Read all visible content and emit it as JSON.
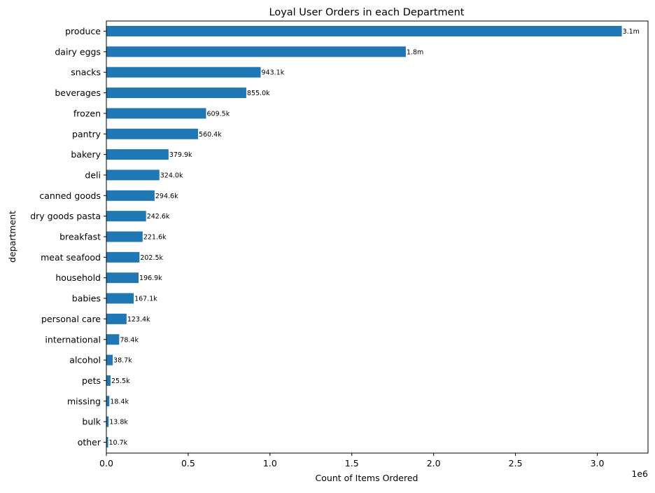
{
  "chart_data": {
    "type": "bar",
    "orientation": "horizontal",
    "title": "Loyal User Orders in each Department",
    "xlabel": "Count of Items Ordered",
    "ylabel": "department",
    "x_offset_label": "1e6",
    "xlim": [
      0,
      3.31
    ],
    "xticks": [
      0.0,
      0.5,
      1.0,
      1.5,
      2.0,
      2.5,
      3.0
    ],
    "xtick_labels": [
      "0.0",
      "0.5",
      "1.0",
      "1.5",
      "2.0",
      "2.5",
      "3.0"
    ],
    "grid": false,
    "legend": "none",
    "bar_color": "#1f77b4",
    "categories": [
      "produce",
      "dairy eggs",
      "snacks",
      "beverages",
      "frozen",
      "pantry",
      "bakery",
      "deli",
      "canned goods",
      "dry goods pasta",
      "breakfast",
      "meat seafood",
      "household",
      "babies",
      "personal care",
      "international",
      "alcohol",
      "pets",
      "missing",
      "bulk",
      "other"
    ],
    "values": [
      3150000,
      1830000,
      943100,
      855000,
      609500,
      560400,
      379900,
      324000,
      294600,
      242600,
      221600,
      202500,
      196900,
      167100,
      123400,
      78400,
      38700,
      25500,
      18400,
      13800,
      10700
    ],
    "value_labels": [
      "3.1m",
      "1.8m",
      "943.1k",
      "855.0k",
      "609.5k",
      "560.4k",
      "379.9k",
      "324.0k",
      "294.6k",
      "242.6k",
      "221.6k",
      "202.5k",
      "196.9k",
      "167.1k",
      "123.4k",
      "78.4k",
      "38.7k",
      "25.5k",
      "18.4k",
      "13.8k",
      "10.7k"
    ]
  }
}
